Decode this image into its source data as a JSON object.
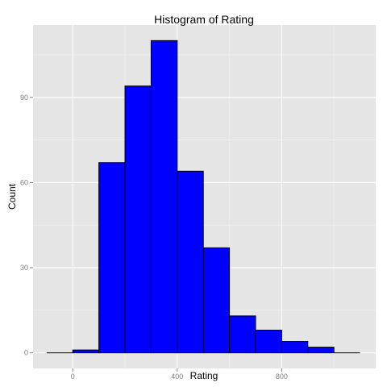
{
  "chart_data": {
    "type": "bar",
    "title": "Histogram of Rating",
    "xlabel": "Rating",
    "ylabel": "Count",
    "bin_width": 100,
    "bins": [
      {
        "start": -100,
        "end": 0,
        "count": 0
      },
      {
        "start": 0,
        "end": 100,
        "count": 1
      },
      {
        "start": 100,
        "end": 200,
        "count": 67
      },
      {
        "start": 200,
        "end": 300,
        "count": 94
      },
      {
        "start": 300,
        "end": 400,
        "count": 110
      },
      {
        "start": 400,
        "end": 500,
        "count": 64
      },
      {
        "start": 500,
        "end": 600,
        "count": 37
      },
      {
        "start": 600,
        "end": 700,
        "count": 13
      },
      {
        "start": 700,
        "end": 800,
        "count": 8
      },
      {
        "start": 800,
        "end": 900,
        "count": 4
      },
      {
        "start": 900,
        "end": 1000,
        "count": 2
      },
      {
        "start": 1000,
        "end": 1100,
        "count": 0
      }
    ],
    "x_ticks": [
      0,
      400,
      800
    ],
    "x_tick_labels": [
      "0",
      "400",
      "800"
    ],
    "y_ticks": [
      0,
      30,
      60,
      90
    ],
    "y_tick_labels": [
      "0",
      "30",
      "60",
      "90"
    ],
    "xlim": [
      -152,
      1160
    ],
    "ylim": [
      -5.5,
      115.5
    ],
    "grid": true,
    "colors": {
      "bar_fill": "#0000ff",
      "bar_outline": "#000000",
      "panel_background": "#e5e5e5",
      "grid_major": "#ffffff",
      "grid_minor": "#f2f2f2"
    }
  }
}
